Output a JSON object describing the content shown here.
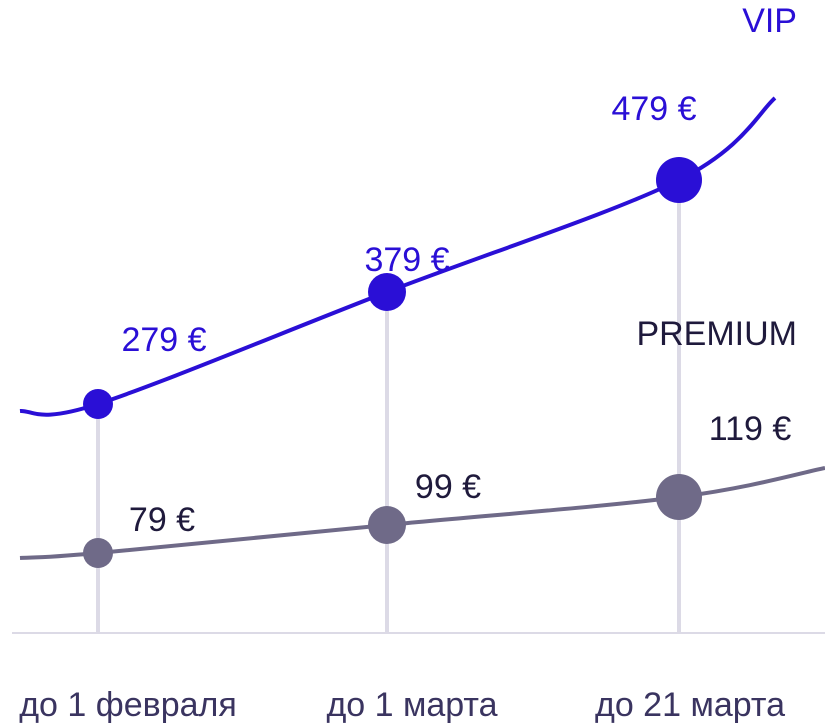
{
  "chart_data": {
    "type": "line",
    "categories": [
      "до 1 февраля",
      "до 1 марта",
      "до 21 марта"
    ],
    "series": [
      {
        "name": "VIP",
        "values": [
          279,
          379,
          479
        ],
        "labels": [
          "279 €",
          "379 €",
          "479 €"
        ],
        "color": "#2a0fd6"
      },
      {
        "name": "PREMIUM",
        "values": [
          79,
          99,
          119
        ],
        "labels": [
          "79 €",
          "99 €",
          "119 €"
        ],
        "color": "#6f6a88"
      }
    ],
    "grid": false,
    "drop_line_color": "#dcdae6",
    "baseline_color": "#dcdae6",
    "tick_label_color": "#3a3460"
  }
}
